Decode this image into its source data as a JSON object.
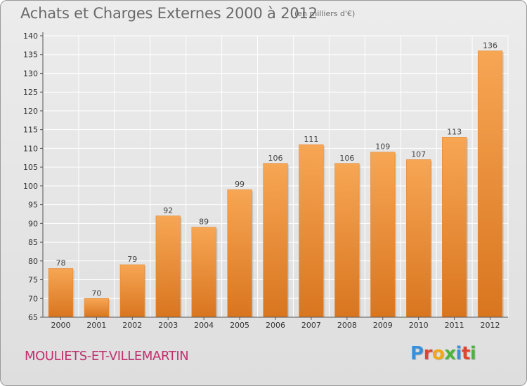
{
  "header": {
    "title": "Achats et Charges Externes 2000 à 2012",
    "unit": "(en milliers d'€)"
  },
  "footer": {
    "commune": "MOULIETS-ET-VILLEMARTIN",
    "logo_letters": [
      {
        "ch": "P",
        "color": "#3a8fd8"
      },
      {
        "ch": "r",
        "color": "#e0432f"
      },
      {
        "ch": "o",
        "color": "#f0a818"
      },
      {
        "ch": "x",
        "color": "#4db33d"
      },
      {
        "ch": "i",
        "color": "#3a8fd8"
      },
      {
        "ch": "t",
        "color": "#e0432f"
      },
      {
        "ch": "i",
        "color": "#4db33d"
      }
    ]
  },
  "colors": {
    "bar_light": "#f7a654",
    "bar_dark": "#d9751f",
    "grid": "#ffffff",
    "axis": "#555555"
  },
  "chart_data": {
    "type": "bar",
    "title": "Achats et Charges Externes 2000 à 2012",
    "subtitle": "(en milliers d'€)",
    "categories": [
      "2000",
      "2001",
      "2002",
      "2003",
      "2004",
      "2005",
      "2006",
      "2007",
      "2008",
      "2009",
      "2010",
      "2011",
      "2012"
    ],
    "values": [
      78,
      70,
      79,
      92,
      89,
      99,
      106,
      111,
      106,
      109,
      107,
      113,
      136
    ],
    "ylim": [
      65,
      140
    ],
    "yticks": [
      65,
      70,
      75,
      80,
      85,
      90,
      95,
      100,
      105,
      110,
      115,
      120,
      125,
      130,
      135,
      140
    ],
    "grid": true,
    "data_labels": true
  }
}
